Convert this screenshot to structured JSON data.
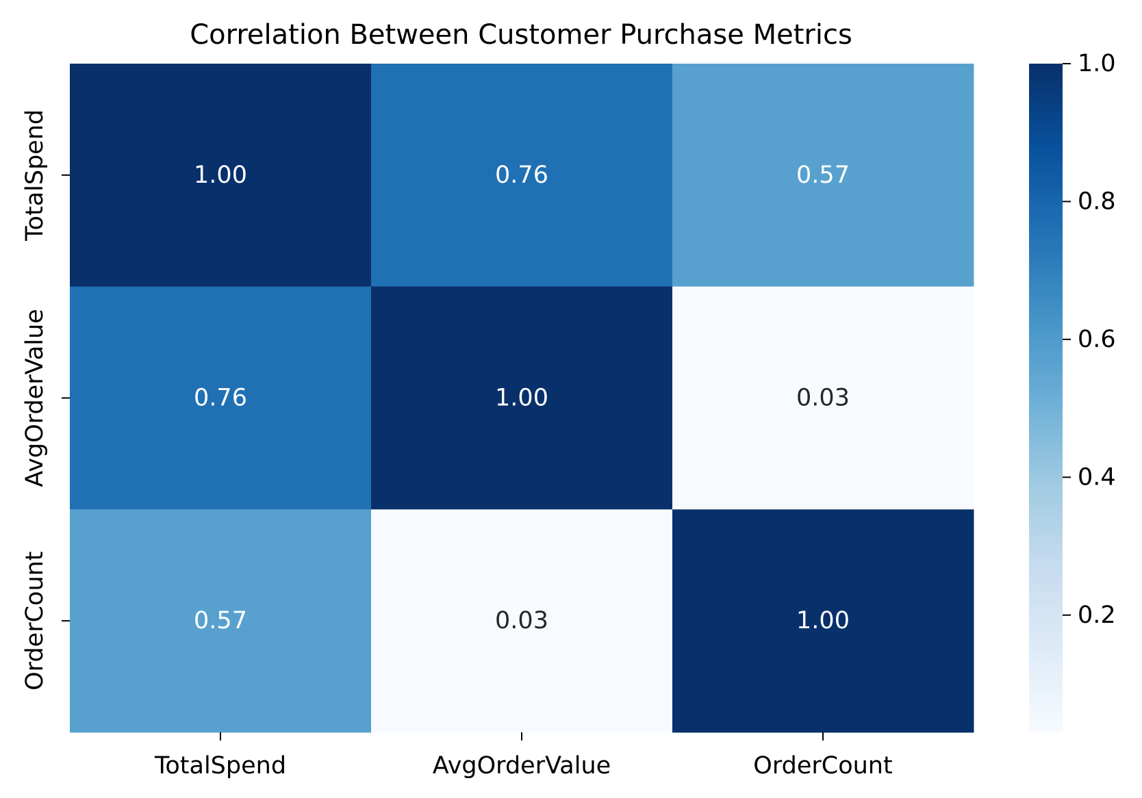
{
  "chart_data": {
    "type": "heatmap",
    "title": "Correlation Between Customer Purchase Metrics",
    "x_categories": [
      "TotalSpend",
      "AvgOrderValue",
      "OrderCount"
    ],
    "y_categories": [
      "TotalSpend",
      "AvgOrderValue",
      "OrderCount"
    ],
    "values": [
      [
        1.0,
        0.76,
        0.57
      ],
      [
        0.76,
        1.0,
        0.03
      ],
      [
        0.57,
        0.03,
        1.0
      ]
    ],
    "cell_labels": [
      [
        "1.00",
        "0.76",
        "0.57"
      ],
      [
        "0.76",
        "1.00",
        "0.03"
      ],
      [
        "0.57",
        "0.03",
        "1.00"
      ]
    ],
    "colorscale": "Blues",
    "color_range": [
      0.03,
      1.0
    ],
    "colorbar_ticks": [
      0.2,
      0.4,
      0.6,
      0.8,
      1.0
    ],
    "colorbar_tick_labels": [
      "0.2",
      "0.4",
      "0.6",
      "0.8",
      "1.0"
    ],
    "colors": {
      "low": "#f7fbff",
      "high": "#08306b",
      "text_dark": "#262626",
      "text_light": "#ffffff"
    }
  }
}
